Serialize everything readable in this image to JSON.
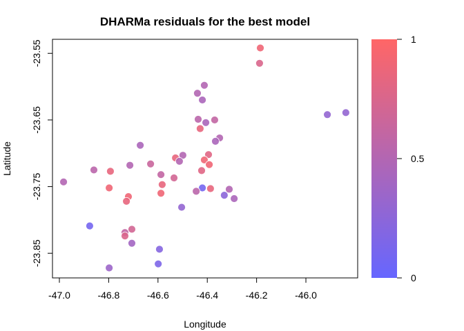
{
  "chart_data": {
    "type": "scatter",
    "title": "DHARMa residuals for the best model",
    "x_label": "Longitude",
    "y_label": "Latitude",
    "xlim": [
      -47.028,
      -45.79
    ],
    "ylim": [
      -23.887,
      -23.529
    ],
    "xticks": [
      {
        "value": -47,
        "label": "-47.0"
      },
      -46.8,
      -46.6,
      -46.4,
      -46.2,
      {
        "value": -46,
        "label": "-46.0"
      }
    ],
    "yticks": [
      -23.85,
      -23.75,
      -23.65,
      -23.55
    ],
    "x": [
      -46.185,
      -46.188,
      -46.412,
      -46.44,
      -46.42,
      -45.913,
      -45.838,
      -46.437,
      -46.37,
      -46.406,
      -46.429,
      -46.35,
      -46.367,
      -46.672,
      -46.395,
      -46.499,
      -46.529,
      -46.412,
      -46.513,
      -46.63,
      -46.714,
      -46.392,
      -46.86,
      -46.793,
      -46.423,
      -46.588,
      -46.535,
      -46.983,
      -46.583,
      -46.798,
      -46.42,
      -46.387,
      -46.311,
      -46.445,
      -46.588,
      -46.72,
      -46.728,
      -46.331,
      -46.291,
      -46.504,
      -46.877,
      -46.706,
      -46.734,
      -46.734,
      -46.706,
      -46.594,
      -46.599,
      -46.798
    ],
    "values": [
      -23.542,
      -23.565,
      -23.598,
      -23.61,
      -23.62,
      -23.642,
      -23.639,
      -23.649,
      -23.65,
      -23.654,
      -23.663,
      -23.677,
      -23.682,
      -23.688,
      -23.702,
      -23.703,
      -23.707,
      -23.71,
      -23.712,
      -23.716,
      -23.718,
      -23.717,
      -23.725,
      -23.727,
      -23.726,
      -23.732,
      -23.737,
      -23.743,
      -23.747,
      -23.752,
      -23.752,
      -23.753,
      -23.754,
      -23.757,
      -23.76,
      -23.765,
      -23.772,
      -23.763,
      -23.768,
      -23.781,
      -23.809,
      -23.814,
      -23.819,
      -23.824,
      -23.835,
      -23.844,
      -23.866,
      -23.872
    ],
    "residuals": [
      0.9,
      0.75,
      0.5,
      0.5,
      0.45,
      0.3,
      0.3,
      0.55,
      0.6,
      0.45,
      0.85,
      0.5,
      0.45,
      0.45,
      0.8,
      0.5,
      0.85,
      0.9,
      0.5,
      0.65,
      0.5,
      0.9,
      0.55,
      0.85,
      0.8,
      0.6,
      0.7,
      0.5,
      0.85,
      0.9,
      0.1,
      0.85,
      0.5,
      0.55,
      0.9,
      0.9,
      0.85,
      0.25,
      0.45,
      0.3,
      0.1,
      0.7,
      0.6,
      0.75,
      0.4,
      0.2,
      0.15,
      0.35
    ],
    "colorbar": {
      "lim": [
        0,
        1
      ],
      "ticks": [
        0,
        0.5,
        1
      ],
      "low_color": "#6666ff",
      "high_color": "#ff6666"
    }
  }
}
